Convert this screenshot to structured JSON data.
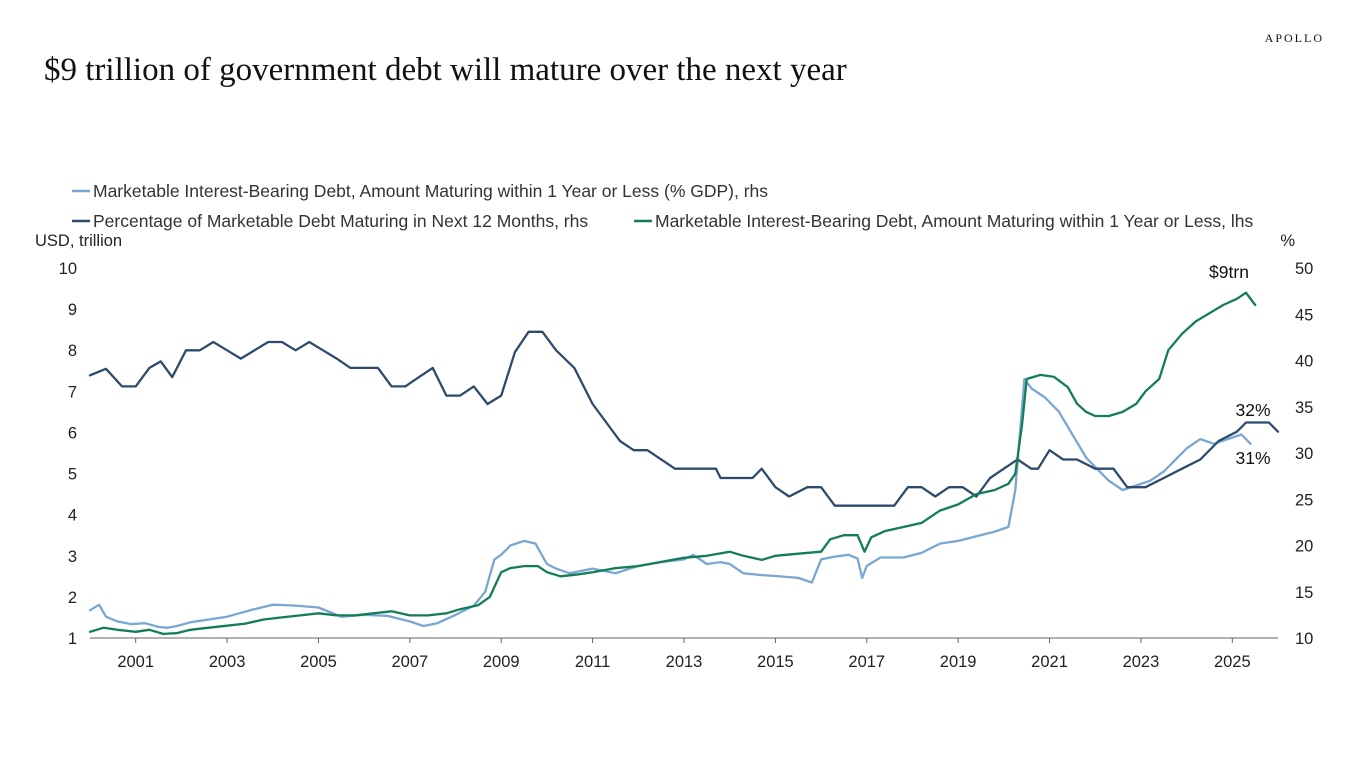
{
  "brand": "APOLLO",
  "title": "$9 trillion of government debt will mature over the next year",
  "chart_data": {
    "type": "line",
    "title": "$9 trillion of government debt will mature over the next year",
    "left_axis": {
      "label": "USD, trillion",
      "range": [
        1,
        10
      ],
      "ticks": [
        "10",
        "9",
        "8",
        "7",
        "6",
        "5",
        "4",
        "3",
        "2",
        "1"
      ]
    },
    "right_axis": {
      "label": "%",
      "range": [
        10,
        50
      ],
      "ticks": [
        "50",
        "45",
        "40",
        "35",
        "30",
        "25",
        "20",
        "15",
        "10"
      ]
    },
    "x_axis": {
      "range": [
        2000.0,
        2026.0
      ],
      "ticks": [
        "2001",
        "2003",
        "2005",
        "2007",
        "2009",
        "2011",
        "2013",
        "2015",
        "2017",
        "2019",
        "2021",
        "2023",
        "2025"
      ]
    },
    "grid": false,
    "legend_placement": "top-left",
    "legend": [
      "Marketable Interest-Bearing Debt, Amount Maturing within 1 Year or Less (% GDP), rhs",
      "Percentage of Marketable Debt Maturing in Next 12 Months, rhs",
      "Marketable Interest-Bearing Debt, Amount Maturing within 1 Year or Less, lhs"
    ],
    "annotations": [
      "$9trn",
      "32%",
      "31%"
    ],
    "series": [
      {
        "name": "Marketable Interest-Bearing Debt, Amount Maturing within 1 Year or Less (% GDP), rhs",
        "axis": "right",
        "color": "#7aa6d2",
        "points": [
          [
            2000.0,
            13.0
          ],
          [
            2000.2,
            13.6
          ],
          [
            2000.35,
            12.3
          ],
          [
            2000.6,
            11.8
          ],
          [
            2000.9,
            11.5
          ],
          [
            2001.2,
            11.6
          ],
          [
            2001.5,
            11.2
          ],
          [
            2001.7,
            11.1
          ],
          [
            2001.9,
            11.3
          ],
          [
            2002.2,
            11.7
          ],
          [
            2002.6,
            12.0
          ],
          [
            2003.0,
            12.3
          ],
          [
            2003.5,
            13.0
          ],
          [
            2004.0,
            13.6
          ],
          [
            2004.5,
            13.5
          ],
          [
            2005.0,
            13.3
          ],
          [
            2005.5,
            12.3
          ],
          [
            2006.0,
            12.5
          ],
          [
            2006.5,
            12.4
          ],
          [
            2007.0,
            11.8
          ],
          [
            2007.3,
            11.3
          ],
          [
            2007.6,
            11.6
          ],
          [
            2008.0,
            12.5
          ],
          [
            2008.4,
            13.5
          ],
          [
            2008.65,
            15.0
          ],
          [
            2008.85,
            18.5
          ],
          [
            2009.0,
            19.0
          ],
          [
            2009.2,
            20.0
          ],
          [
            2009.5,
            20.5
          ],
          [
            2009.75,
            20.2
          ],
          [
            2010.0,
            18.0
          ],
          [
            2010.2,
            17.5
          ],
          [
            2010.5,
            17.0
          ],
          [
            2011.0,
            17.5
          ],
          [
            2011.5,
            17.0
          ],
          [
            2012.0,
            17.8
          ],
          [
            2012.5,
            18.2
          ],
          [
            2013.0,
            18.5
          ],
          [
            2013.2,
            19.0
          ],
          [
            2013.5,
            18.0
          ],
          [
            2013.8,
            18.2
          ],
          [
            2014.0,
            18.0
          ],
          [
            2014.3,
            17.0
          ],
          [
            2014.7,
            16.8
          ],
          [
            2015.0,
            16.7
          ],
          [
            2015.5,
            16.5
          ],
          [
            2015.8,
            16.0
          ],
          [
            2016.0,
            18.5
          ],
          [
            2016.3,
            18.8
          ],
          [
            2016.6,
            19.0
          ],
          [
            2016.8,
            18.6
          ],
          [
            2016.9,
            16.5
          ],
          [
            2017.0,
            17.8
          ],
          [
            2017.3,
            18.7
          ],
          [
            2017.8,
            18.7
          ],
          [
            2018.2,
            19.2
          ],
          [
            2018.6,
            20.2
          ],
          [
            2019.0,
            20.5
          ],
          [
            2019.4,
            21.0
          ],
          [
            2019.8,
            21.5
          ],
          [
            2020.1,
            22.0
          ],
          [
            2020.25,
            26.0
          ],
          [
            2020.45,
            38.0
          ],
          [
            2020.6,
            37.0
          ],
          [
            2020.9,
            36.0
          ],
          [
            2021.2,
            34.5
          ],
          [
            2021.5,
            32.0
          ],
          [
            2021.8,
            29.5
          ],
          [
            2022.0,
            28.5
          ],
          [
            2022.3,
            27.0
          ],
          [
            2022.6,
            26.0
          ],
          [
            2022.9,
            26.5
          ],
          [
            2023.2,
            27.0
          ],
          [
            2023.5,
            28.0
          ],
          [
            2023.8,
            29.5
          ],
          [
            2024.0,
            30.5
          ],
          [
            2024.3,
            31.5
          ],
          [
            2024.6,
            31.0
          ],
          [
            2024.9,
            31.5
          ],
          [
            2025.2,
            32.0
          ],
          [
            2025.4,
            31.0
          ]
        ]
      },
      {
        "name": "Percentage of Marketable Debt Maturing in Next 12 Months, rhs",
        "axis": "right",
        "color": "#2e4b6b",
        "points": [
          [
            2000.0,
            38.4
          ],
          [
            2000.35,
            39.1
          ],
          [
            2000.7,
            37.2
          ],
          [
            2001.0,
            37.2
          ],
          [
            2001.3,
            39.2
          ],
          [
            2001.55,
            39.9
          ],
          [
            2001.8,
            38.2
          ],
          [
            2002.1,
            41.1
          ],
          [
            2002.4,
            41.1
          ],
          [
            2002.7,
            42.0
          ],
          [
            2003.0,
            41.1
          ],
          [
            2003.3,
            40.2
          ],
          [
            2003.6,
            41.1
          ],
          [
            2003.9,
            42.0
          ],
          [
            2004.2,
            42.0
          ],
          [
            2004.5,
            41.1
          ],
          [
            2004.8,
            42.0
          ],
          [
            2005.1,
            41.1
          ],
          [
            2005.4,
            40.2
          ],
          [
            2005.7,
            39.2
          ],
          [
            2006.0,
            39.2
          ],
          [
            2006.3,
            39.2
          ],
          [
            2006.6,
            37.2
          ],
          [
            2006.9,
            37.2
          ],
          [
            2007.2,
            38.2
          ],
          [
            2007.5,
            39.2
          ],
          [
            2007.8,
            36.2
          ],
          [
            2008.1,
            36.2
          ],
          [
            2008.4,
            37.2
          ],
          [
            2008.7,
            35.3
          ],
          [
            2009.0,
            36.2
          ],
          [
            2009.3,
            40.9
          ],
          [
            2009.6,
            43.1
          ],
          [
            2009.9,
            43.1
          ],
          [
            2010.2,
            41.1
          ],
          [
            2010.6,
            39.2
          ],
          [
            2011.0,
            35.3
          ],
          [
            2011.6,
            31.3
          ],
          [
            2011.9,
            30.3
          ],
          [
            2012.2,
            30.3
          ],
          [
            2012.8,
            28.3
          ],
          [
            2013.2,
            28.3
          ],
          [
            2013.7,
            28.3
          ],
          [
            2013.8,
            27.3
          ],
          [
            2014.5,
            27.3
          ],
          [
            2014.7,
            28.3
          ],
          [
            2015.0,
            26.3
          ],
          [
            2015.3,
            25.3
          ],
          [
            2015.7,
            26.3
          ],
          [
            2016.0,
            26.3
          ],
          [
            2016.3,
            24.3
          ],
          [
            2017.0,
            24.3
          ],
          [
            2017.3,
            24.3
          ],
          [
            2017.6,
            24.3
          ],
          [
            2017.9,
            26.3
          ],
          [
            2018.2,
            26.3
          ],
          [
            2018.5,
            25.3
          ],
          [
            2018.8,
            26.3
          ],
          [
            2019.1,
            26.3
          ],
          [
            2019.4,
            25.3
          ],
          [
            2019.7,
            27.3
          ],
          [
            2020.0,
            28.3
          ],
          [
            2020.3,
            29.3
          ],
          [
            2020.6,
            28.3
          ],
          [
            2020.75,
            28.3
          ],
          [
            2021.0,
            30.3
          ],
          [
            2021.3,
            29.3
          ],
          [
            2021.6,
            29.3
          ],
          [
            2022.0,
            28.3
          ],
          [
            2022.4,
            28.3
          ],
          [
            2022.7,
            26.3
          ],
          [
            2023.1,
            26.3
          ],
          [
            2023.5,
            27.3
          ],
          [
            2023.9,
            28.3
          ],
          [
            2024.3,
            29.3
          ],
          [
            2024.7,
            31.3
          ],
          [
            2025.1,
            32.3
          ],
          [
            2025.3,
            33.3
          ],
          [
            2025.5,
            33.3
          ],
          [
            2025.8,
            33.3
          ],
          [
            2026.0,
            32.3
          ]
        ]
      },
      {
        "name": "Marketable Interest-Bearing Debt, Amount Maturing within 1 Year or Less, lhs",
        "axis": "left",
        "color": "#137d58",
        "points": [
          [
            2000.0,
            1.15
          ],
          [
            2000.3,
            1.25
          ],
          [
            2000.6,
            1.2
          ],
          [
            2001.0,
            1.15
          ],
          [
            2001.3,
            1.2
          ],
          [
            2001.6,
            1.1
          ],
          [
            2001.9,
            1.12
          ],
          [
            2002.2,
            1.2
          ],
          [
            2002.6,
            1.25
          ],
          [
            2003.0,
            1.3
          ],
          [
            2003.4,
            1.35
          ],
          [
            2003.8,
            1.45
          ],
          [
            2004.2,
            1.5
          ],
          [
            2004.6,
            1.55
          ],
          [
            2005.0,
            1.6
          ],
          [
            2005.4,
            1.55
          ],
          [
            2005.8,
            1.55
          ],
          [
            2006.2,
            1.6
          ],
          [
            2006.6,
            1.65
          ],
          [
            2007.0,
            1.55
          ],
          [
            2007.4,
            1.55
          ],
          [
            2007.8,
            1.6
          ],
          [
            2008.1,
            1.7
          ],
          [
            2008.5,
            1.8
          ],
          [
            2008.75,
            2.0
          ],
          [
            2009.0,
            2.6
          ],
          [
            2009.2,
            2.7
          ],
          [
            2009.5,
            2.75
          ],
          [
            2009.8,
            2.75
          ],
          [
            2010.0,
            2.6
          ],
          [
            2010.3,
            2.5
          ],
          [
            2010.7,
            2.55
          ],
          [
            2011.0,
            2.6
          ],
          [
            2011.5,
            2.7
          ],
          [
            2012.0,
            2.75
          ],
          [
            2012.5,
            2.85
          ],
          [
            2013.0,
            2.95
          ],
          [
            2013.5,
            3.0
          ],
          [
            2014.0,
            3.1
          ],
          [
            2014.3,
            3.0
          ],
          [
            2014.7,
            2.9
          ],
          [
            2015.0,
            3.0
          ],
          [
            2015.5,
            3.05
          ],
          [
            2016.0,
            3.1
          ],
          [
            2016.2,
            3.4
          ],
          [
            2016.5,
            3.5
          ],
          [
            2016.8,
            3.5
          ],
          [
            2016.95,
            3.1
          ],
          [
            2017.1,
            3.45
          ],
          [
            2017.4,
            3.6
          ],
          [
            2017.8,
            3.7
          ],
          [
            2018.2,
            3.8
          ],
          [
            2018.6,
            4.1
          ],
          [
            2019.0,
            4.25
          ],
          [
            2019.4,
            4.5
          ],
          [
            2019.8,
            4.6
          ],
          [
            2020.1,
            4.75
          ],
          [
            2020.25,
            5.0
          ],
          [
            2020.4,
            6.2
          ],
          [
            2020.5,
            7.3
          ],
          [
            2020.8,
            7.4
          ],
          [
            2021.1,
            7.35
          ],
          [
            2021.4,
            7.1
          ],
          [
            2021.6,
            6.7
          ],
          [
            2021.8,
            6.5
          ],
          [
            2022.0,
            6.4
          ],
          [
            2022.3,
            6.4
          ],
          [
            2022.6,
            6.5
          ],
          [
            2022.9,
            6.7
          ],
          [
            2023.1,
            7.0
          ],
          [
            2023.4,
            7.3
          ],
          [
            2023.6,
            8.0
          ],
          [
            2023.9,
            8.4
          ],
          [
            2024.2,
            8.7
          ],
          [
            2024.5,
            8.9
          ],
          [
            2024.8,
            9.1
          ],
          [
            2025.1,
            9.25
          ],
          [
            2025.3,
            9.4
          ],
          [
            2025.5,
            9.1
          ]
        ]
      }
    ]
  }
}
